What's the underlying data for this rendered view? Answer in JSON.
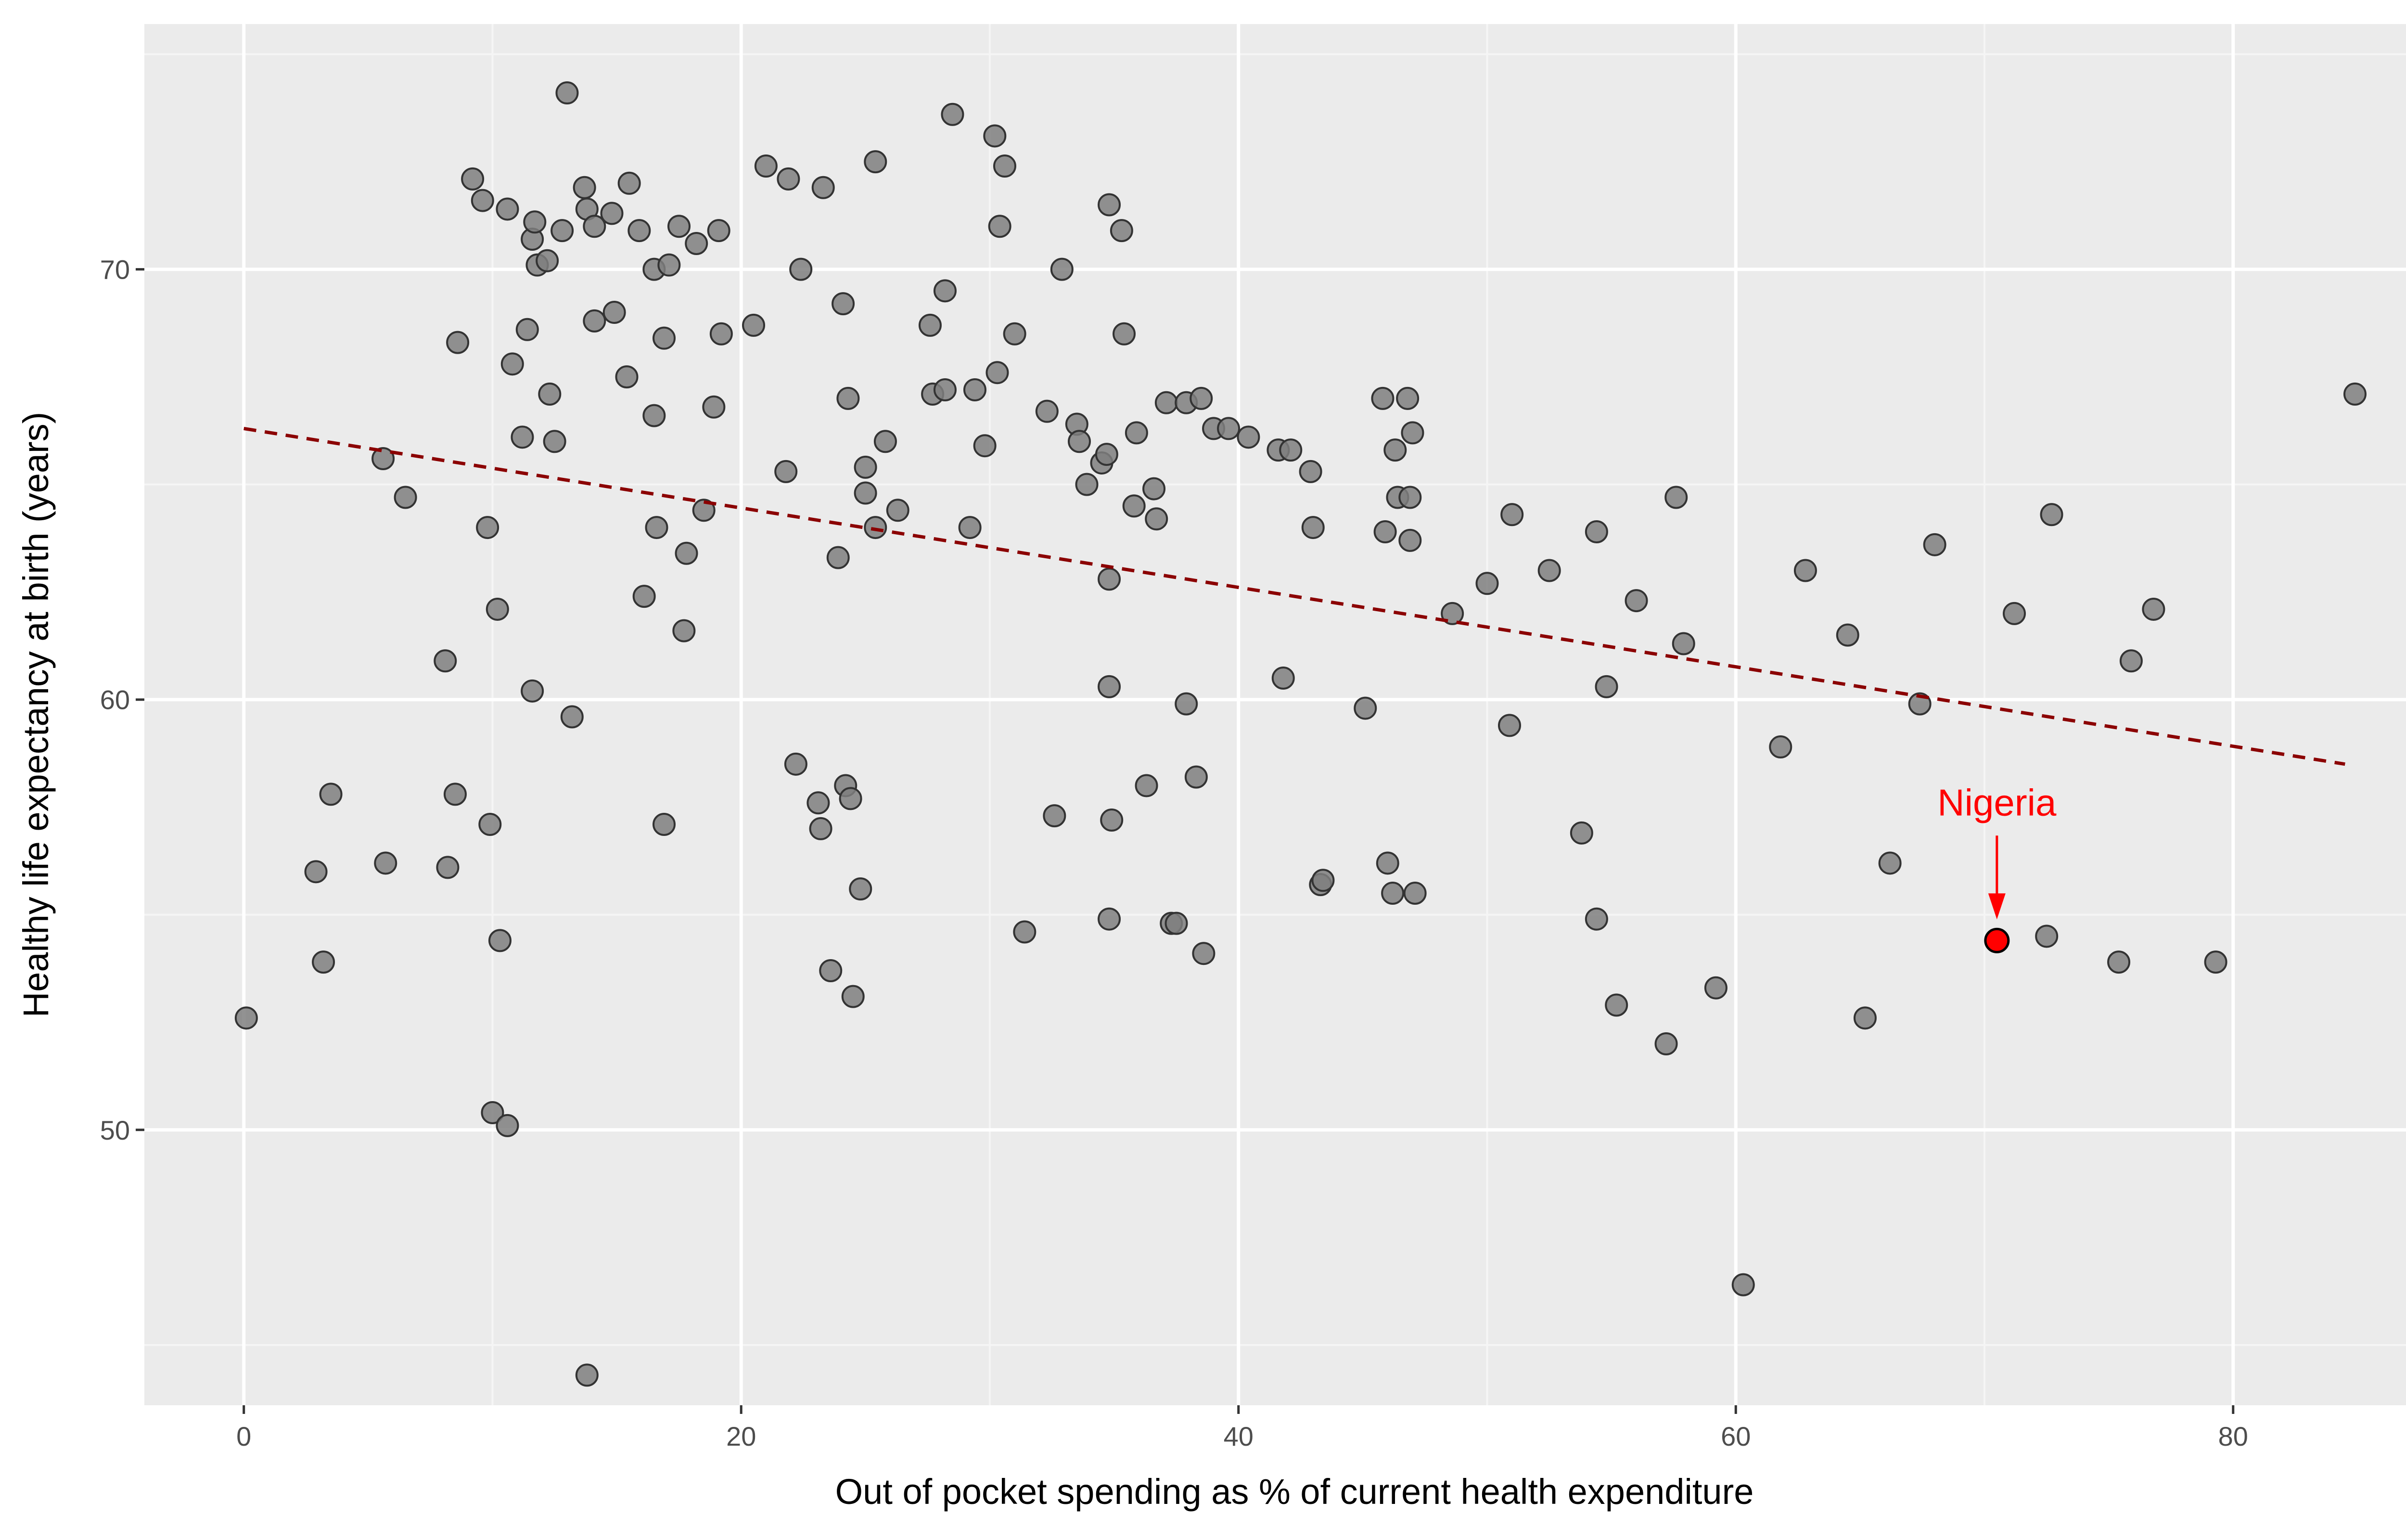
{
  "colors": {
    "panel_background": "#ebebeb",
    "grid_major": "#ffffff",
    "grid_minor": "#f5f5f5",
    "point_fill": "#7f7f7f",
    "point_stroke": "#333333",
    "trend_line": "#8b0000",
    "highlight": "#ff0000"
  },
  "chart_data": {
    "type": "scatter",
    "xlabel": "Out of pocket spending as % of current health expenditure",
    "ylabel": "Healthy life expectancy at birth (years)",
    "xlim": [
      -4,
      88.5
    ],
    "ylim": [
      43.6,
      75.7
    ],
    "x_ticks": [
      0,
      20,
      40,
      60,
      80
    ],
    "y_ticks": [
      50,
      60,
      70
    ],
    "grid": true,
    "trend_line": {
      "style": "dashed",
      "from": [
        0,
        66.3
      ],
      "to": [
        84.5,
        58.5
      ]
    },
    "highlight": {
      "label": "Nigeria",
      "x": 70.5,
      "y": 54.4,
      "label_position": [
        70.5,
        57.6
      ]
    },
    "points": [
      [
        0.1,
        52.6
      ],
      [
        2.9,
        56.0
      ],
      [
        3.2,
        53.9
      ],
      [
        3.5,
        57.8
      ],
      [
        5.6,
        65.6
      ],
      [
        5.7,
        56.2
      ],
      [
        6.5,
        64.7
      ],
      [
        8.1,
        60.9
      ],
      [
        8.2,
        56.1
      ],
      [
        8.5,
        57.8
      ],
      [
        8.6,
        68.3
      ],
      [
        9.2,
        72.1
      ],
      [
        9.6,
        71.6
      ],
      [
        9.8,
        64.0
      ],
      [
        9.9,
        57.1
      ],
      [
        10.0,
        50.4
      ],
      [
        10.2,
        62.1
      ],
      [
        10.3,
        54.4
      ],
      [
        10.6,
        71.4
      ],
      [
        10.6,
        50.1
      ],
      [
        10.8,
        67.8
      ],
      [
        11.2,
        66.1
      ],
      [
        11.4,
        68.6
      ],
      [
        11.6,
        70.7
      ],
      [
        11.6,
        60.2
      ],
      [
        11.7,
        71.1
      ],
      [
        11.8,
        70.1
      ],
      [
        12.2,
        70.2
      ],
      [
        12.3,
        67.1
      ],
      [
        12.5,
        66.0
      ],
      [
        12.8,
        70.9
      ],
      [
        13.0,
        74.1
      ],
      [
        13.2,
        59.6
      ],
      [
        13.7,
        71.9
      ],
      [
        13.8,
        71.4
      ],
      [
        14.1,
        71.0
      ],
      [
        14.1,
        68.8
      ],
      [
        13.8,
        44.3
      ],
      [
        14.8,
        71.3
      ],
      [
        14.9,
        69.0
      ],
      [
        15.4,
        67.5
      ],
      [
        15.5,
        72.0
      ],
      [
        15.9,
        70.9
      ],
      [
        16.1,
        62.4
      ],
      [
        16.5,
        70.0
      ],
      [
        16.5,
        66.6
      ],
      [
        16.6,
        64.0
      ],
      [
        16.9,
        68.4
      ],
      [
        16.9,
        57.1
      ],
      [
        17.1,
        70.1
      ],
      [
        17.5,
        71.0
      ],
      [
        17.7,
        61.6
      ],
      [
        17.8,
        63.4
      ],
      [
        18.2,
        70.6
      ],
      [
        18.5,
        64.4
      ],
      [
        18.9,
        66.8
      ],
      [
        19.1,
        70.9
      ],
      [
        19.2,
        68.5
      ],
      [
        20.5,
        68.7
      ],
      [
        21.0,
        72.4
      ],
      [
        21.8,
        65.3
      ],
      [
        21.9,
        72.1
      ],
      [
        22.2,
        58.5
      ],
      [
        22.4,
        70.0
      ],
      [
        23.1,
        57.6
      ],
      [
        23.2,
        57.0
      ],
      [
        23.3,
        71.9
      ],
      [
        23.6,
        53.7
      ],
      [
        23.9,
        63.3
      ],
      [
        24.1,
        69.2
      ],
      [
        24.2,
        58.0
      ],
      [
        24.3,
        67.0
      ],
      [
        24.4,
        57.7
      ],
      [
        24.5,
        53.1
      ],
      [
        24.8,
        55.6
      ],
      [
        25.0,
        65.4
      ],
      [
        25.0,
        64.8
      ],
      [
        25.4,
        72.5
      ],
      [
        25.4,
        64.0
      ],
      [
        25.8,
        66.0
      ],
      [
        26.3,
        64.4
      ],
      [
        27.6,
        68.7
      ],
      [
        27.7,
        67.1
      ],
      [
        28.2,
        67.2
      ],
      [
        28.2,
        69.5
      ],
      [
        28.5,
        73.6
      ],
      [
        29.2,
        64.0
      ],
      [
        29.4,
        67.2
      ],
      [
        29.8,
        65.9
      ],
      [
        30.2,
        73.1
      ],
      [
        30.3,
        67.6
      ],
      [
        30.4,
        71.0
      ],
      [
        30.6,
        72.4
      ],
      [
        31.0,
        68.5
      ],
      [
        31.4,
        54.6
      ],
      [
        32.3,
        66.7
      ],
      [
        32.6,
        57.3
      ],
      [
        32.9,
        70.0
      ],
      [
        33.5,
        66.4
      ],
      [
        33.6,
        66.0
      ],
      [
        33.9,
        65.0
      ],
      [
        34.5,
        65.5
      ],
      [
        34.7,
        65.7
      ],
      [
        34.8,
        71.5
      ],
      [
        34.8,
        62.8
      ],
      [
        34.8,
        60.3
      ],
      [
        34.8,
        54.9
      ],
      [
        34.9,
        57.2
      ],
      [
        35.3,
        70.9
      ],
      [
        35.4,
        68.5
      ],
      [
        35.8,
        64.5
      ],
      [
        35.9,
        66.2
      ],
      [
        36.3,
        58.0
      ],
      [
        36.6,
        64.9
      ],
      [
        36.7,
        64.2
      ],
      [
        37.1,
        66.9
      ],
      [
        37.3,
        54.8
      ],
      [
        37.5,
        54.8
      ],
      [
        37.9,
        59.9
      ],
      [
        37.9,
        66.9
      ],
      [
        38.3,
        58.2
      ],
      [
        38.5,
        67.0
      ],
      [
        38.6,
        54.1
      ],
      [
        39.0,
        66.3
      ],
      [
        39.6,
        66.3
      ],
      [
        40.4,
        66.1
      ],
      [
        41.6,
        65.8
      ],
      [
        41.8,
        60.5
      ],
      [
        42.1,
        65.8
      ],
      [
        42.9,
        65.3
      ],
      [
        43.0,
        64.0
      ],
      [
        43.3,
        55.7
      ],
      [
        43.4,
        55.8
      ],
      [
        45.1,
        59.8
      ],
      [
        45.8,
        67.0
      ],
      [
        45.9,
        63.9
      ],
      [
        46.0,
        56.2
      ],
      [
        46.2,
        55.5
      ],
      [
        46.3,
        65.8
      ],
      [
        46.4,
        64.7
      ],
      [
        46.8,
        67.0
      ],
      [
        46.9,
        64.7
      ],
      [
        46.9,
        63.7
      ],
      [
        47.0,
        66.2
      ],
      [
        47.1,
        55.5
      ],
      [
        48.6,
        62.0
      ],
      [
        50.0,
        62.7
      ],
      [
        50.9,
        59.4
      ],
      [
        51.0,
        64.3
      ],
      [
        52.5,
        63.0
      ],
      [
        53.8,
        56.9
      ],
      [
        54.4,
        63.9
      ],
      [
        54.4,
        54.9
      ],
      [
        54.8,
        60.3
      ],
      [
        55.2,
        52.9
      ],
      [
        56.0,
        62.3
      ],
      [
        57.2,
        52.0
      ],
      [
        57.6,
        64.7
      ],
      [
        57.9,
        61.3
      ],
      [
        59.2,
        53.3
      ],
      [
        60.3,
        46.4
      ],
      [
        61.8,
        58.9
      ],
      [
        62.8,
        63.0
      ],
      [
        64.5,
        61.5
      ],
      [
        65.2,
        52.6
      ],
      [
        66.2,
        56.2
      ],
      [
        67.4,
        59.9
      ],
      [
        68.0,
        63.6
      ],
      [
        71.2,
        62.0
      ],
      [
        72.5,
        54.5
      ],
      [
        72.7,
        64.3
      ],
      [
        75.4,
        53.9
      ],
      [
        75.9,
        60.9
      ],
      [
        76.8,
        62.1
      ],
      [
        79.3,
        53.9
      ],
      [
        84.9,
        67.1
      ]
    ]
  }
}
